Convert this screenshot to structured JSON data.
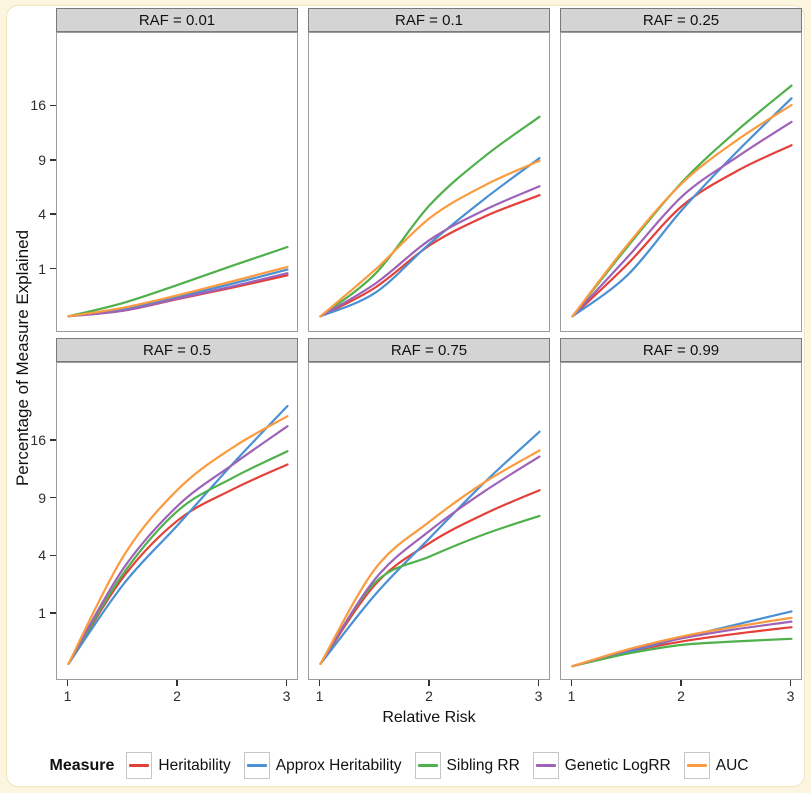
{
  "chart_data": {
    "type": "line",
    "facet_variable": "RAF",
    "xlabel": "Relative Risk",
    "ylabel": "Percentage of Measure Explained",
    "legend_title": "Measure",
    "legend_position": "bottom",
    "grid": "off",
    "x": [
      1,
      1.5,
      2,
      2.5,
      3
    ],
    "x_ticks": [
      "1",
      "2",
      "3"
    ],
    "y_ticks": [
      "16",
      "9",
      "4",
      "1"
    ],
    "y_tick_values": [
      16,
      9,
      4,
      1
    ],
    "y_scale": "sqrt",
    "ylim": [
      0,
      28.6
    ],
    "xlim": [
      1,
      3
    ],
    "series": [
      {
        "name": "Heritability",
        "color": "#e4403a"
      },
      {
        "name": "Approx Heritability",
        "color": "#4a90d4"
      },
      {
        "name": "Sibling RR",
        "color": "#4fb04c"
      },
      {
        "name": "Genetic LogRR",
        "color": "#9e63b7"
      },
      {
        "name": "AUC",
        "color": "#f99b3e"
      }
    ],
    "panels": [
      {
        "label": "RAF = 0.01",
        "values": {
          "Heritability": [
            0.02,
            0.06,
            0.21,
            0.45,
            0.8
          ],
          "Approx Heritability": [
            0.02,
            0.07,
            0.25,
            0.55,
            1.0
          ],
          "Sibling RR": [
            0.02,
            0.15,
            0.52,
            1.15,
            2.0
          ],
          "Genetic LogRR": [
            0.02,
            0.06,
            0.22,
            0.48,
            0.87
          ],
          "AUC": [
            0.02,
            0.09,
            0.28,
            0.62,
            1.1
          ]
        }
      },
      {
        "label": "RAF = 0.1",
        "values": {
          "Heritability": [
            0.02,
            0.45,
            2.1,
            3.9,
            5.6
          ],
          "Approx Heritability": [
            0.02,
            0.33,
            2.2,
            5.3,
            9.3
          ],
          "Sibling RR": [
            0.02,
            0.85,
            4.8,
            9.5,
            14.5
          ],
          "Genetic LogRR": [
            0.02,
            0.55,
            2.4,
            4.4,
            6.4
          ],
          "AUC": [
            0.02,
            1.0,
            3.8,
            6.5,
            9.0
          ]
        }
      },
      {
        "label": "RAF = 0.25",
        "values": {
          "Heritability": [
            0.02,
            1.2,
            4.7,
            7.9,
            10.8
          ],
          "Approx Heritability": [
            0.02,
            0.8,
            4.4,
            10.0,
            17.2
          ],
          "Sibling RR": [
            0.02,
            2.0,
            6.8,
            12.6,
            19.2
          ],
          "Genetic LogRR": [
            0.02,
            1.5,
            5.5,
            9.4,
            13.8
          ],
          "AUC": [
            0.02,
            2.1,
            6.7,
            11.4,
            16.2
          ]
        }
      },
      {
        "label": "RAF = 0.5",
        "values": {
          "Heritability": [
            0.02,
            2.7,
            6.9,
            10.0,
            12.9
          ],
          "Approx Heritability": [
            0.02,
            2.3,
            6.5,
            13.0,
            21.2
          ],
          "Sibling RR": [
            0.02,
            2.9,
            7.8,
            11.3,
            14.6
          ],
          "Genetic LogRR": [
            0.02,
            3.2,
            8.3,
            12.9,
            18.1
          ],
          "AUC": [
            0.02,
            4.0,
            10.0,
            15.1,
            19.6
          ]
        }
      },
      {
        "label": "RAF = 0.75",
        "values": {
          "Heritability": [
            0.02,
            2.3,
            5.0,
            7.5,
            9.9
          ],
          "Approx Heritability": [
            0.02,
            1.8,
            5.4,
            10.8,
            17.3
          ],
          "Sibling RR": [
            0.02,
            2.4,
            4.0,
            5.7,
            7.3
          ],
          "Genetic LogRR": [
            0.02,
            2.6,
            6.0,
            9.8,
            13.9
          ],
          "AUC": [
            0.02,
            3.2,
            6.8,
            10.8,
            14.7
          ]
        }
      },
      {
        "label": "RAF = 0.99",
        "values": {
          "Heritability": [
            0.01,
            0.12,
            0.28,
            0.44,
            0.6
          ],
          "Approx Heritability": [
            0.01,
            0.12,
            0.35,
            0.68,
            1.1
          ],
          "Sibling RR": [
            0.01,
            0.1,
            0.22,
            0.28,
            0.33
          ],
          "Genetic LogRR": [
            0.01,
            0.14,
            0.34,
            0.55,
            0.76
          ],
          "AUC": [
            0.01,
            0.15,
            0.38,
            0.62,
            0.88
          ]
        }
      }
    ],
    "colors": {
      "page_background": "#fcf5e0",
      "card_background": "#ffffff",
      "strip_fill": "#d4d4d4",
      "strip_border": "#7a7a7a",
      "panel_border": "#9c9c9c"
    }
  }
}
